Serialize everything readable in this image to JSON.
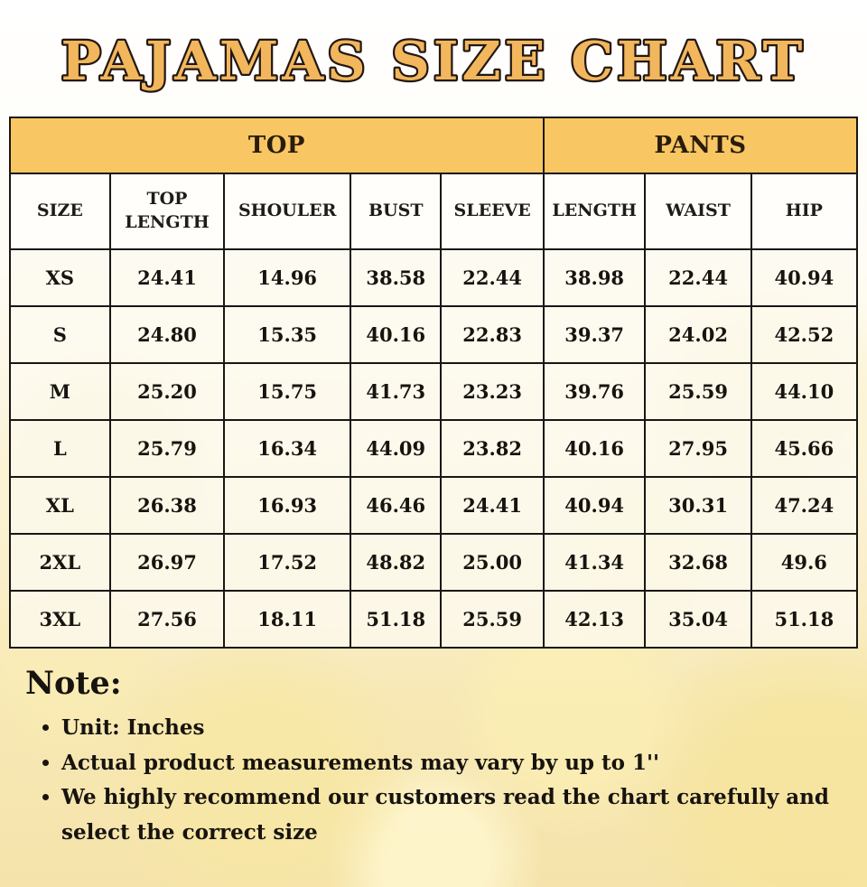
{
  "title": "PAJAMAS SIZE CHART",
  "chart_data": {
    "type": "table",
    "title": "PAJAMAS SIZE CHART",
    "unit": "Inches",
    "group_headers": [
      {
        "label": "TOP",
        "colspan": 5
      },
      {
        "label": "PANTS",
        "colspan": 3
      }
    ],
    "columns": [
      "SIZE",
      "TOP LENGTH",
      "SHOULER",
      "BUST",
      "SLEEVE",
      "LENGTH",
      "WAIST",
      "HIP"
    ],
    "rows": [
      [
        "XS",
        "24.41",
        "14.96",
        "38.58",
        "22.44",
        "38.98",
        "22.44",
        "40.94"
      ],
      [
        "S",
        "24.80",
        "15.35",
        "40.16",
        "22.83",
        "39.37",
        "24.02",
        "42.52"
      ],
      [
        "M",
        "25.20",
        "15.75",
        "41.73",
        "23.23",
        "39.76",
        "25.59",
        "44.10"
      ],
      [
        "L",
        "25.79",
        "16.34",
        "44.09",
        "23.82",
        "40.16",
        "27.95",
        "45.66"
      ],
      [
        "XL",
        "26.38",
        "16.93",
        "46.46",
        "24.41",
        "40.94",
        "30.31",
        "47.24"
      ],
      [
        "2XL",
        "26.97",
        "17.52",
        "48.82",
        "25.00",
        "41.34",
        "32.68",
        "49.6"
      ],
      [
        "3XL",
        "27.56",
        "18.11",
        "51.18",
        "25.59",
        "42.13",
        "35.04",
        "51.18"
      ]
    ]
  },
  "note": {
    "heading": "Note:",
    "items": [
      "Unit: Inches",
      "Actual product measurements may vary by up to 1''",
      "We highly recommend our customers read the chart carefully and select the correct size"
    ]
  },
  "colors": {
    "group_header_band": "#F8C763",
    "title_fill": "#F2B65C",
    "title_outline": "#231813",
    "table_border": "#1A1614",
    "cell_background": "#FDFAF0",
    "text": "#17130F",
    "background_gold": "#F5E3AB"
  }
}
